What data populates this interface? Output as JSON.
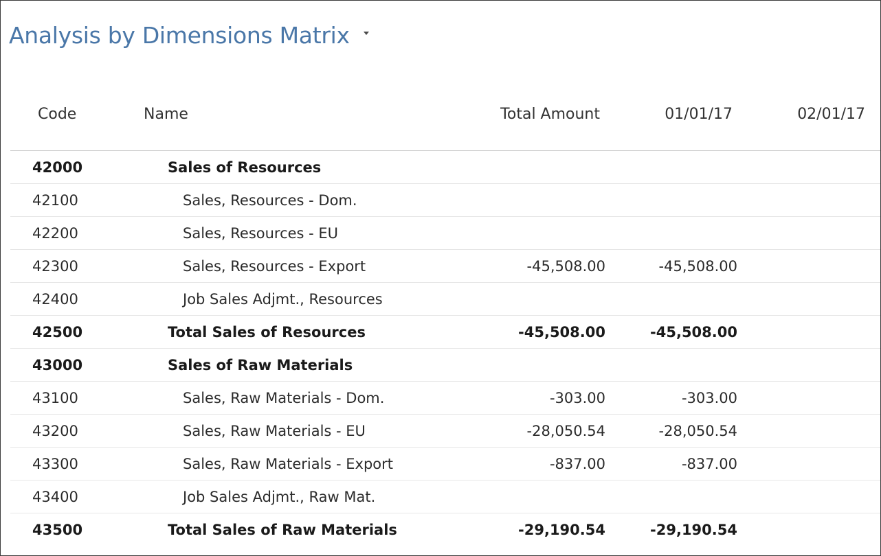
{
  "page": {
    "title": "Analysis by Dimensions Matrix"
  },
  "columns": {
    "code": "Code",
    "name": "Name",
    "total": "Total Amount",
    "d1": "01/01/17",
    "d2": "02/01/17"
  },
  "rows": [
    {
      "code": "42000",
      "name": "Sales of Resources",
      "total": "",
      "d1": "",
      "d2": "",
      "bold": true
    },
    {
      "code": "42100",
      "name": "Sales, Resources - Dom.",
      "total": "",
      "d1": "",
      "d2": "",
      "bold": false
    },
    {
      "code": "42200",
      "name": "Sales, Resources - EU",
      "total": "",
      "d1": "",
      "d2": "",
      "bold": false
    },
    {
      "code": "42300",
      "name": "Sales, Resources - Export",
      "total": "-45,508.00",
      "d1": "-45,508.00",
      "d2": "",
      "bold": false
    },
    {
      "code": "42400",
      "name": "Job Sales Adjmt., Resources",
      "total": "",
      "d1": "",
      "d2": "",
      "bold": false
    },
    {
      "code": "42500",
      "name": "Total Sales of Resources",
      "total": "-45,508.00",
      "d1": "-45,508.00",
      "d2": "",
      "bold": true
    },
    {
      "code": "43000",
      "name": "Sales of Raw Materials",
      "total": "",
      "d1": "",
      "d2": "",
      "bold": true
    },
    {
      "code": "43100",
      "name": "Sales, Raw Materials - Dom.",
      "total": "-303.00",
      "d1": "-303.00",
      "d2": "",
      "bold": false
    },
    {
      "code": "43200",
      "name": "Sales, Raw Materials - EU",
      "total": "-28,050.54",
      "d1": "-28,050.54",
      "d2": "",
      "bold": false
    },
    {
      "code": "43300",
      "name": "Sales, Raw Materials - Export",
      "total": "-837.00",
      "d1": "-837.00",
      "d2": "",
      "bold": false
    },
    {
      "code": "43400",
      "name": "Job Sales Adjmt., Raw Mat.",
      "total": "",
      "d1": "",
      "d2": "",
      "bold": false
    },
    {
      "code": "43500",
      "name": "Total Sales of Raw Materials",
      "total": "-29,190.54",
      "d1": "-29,190.54",
      "d2": "",
      "bold": true
    }
  ]
}
